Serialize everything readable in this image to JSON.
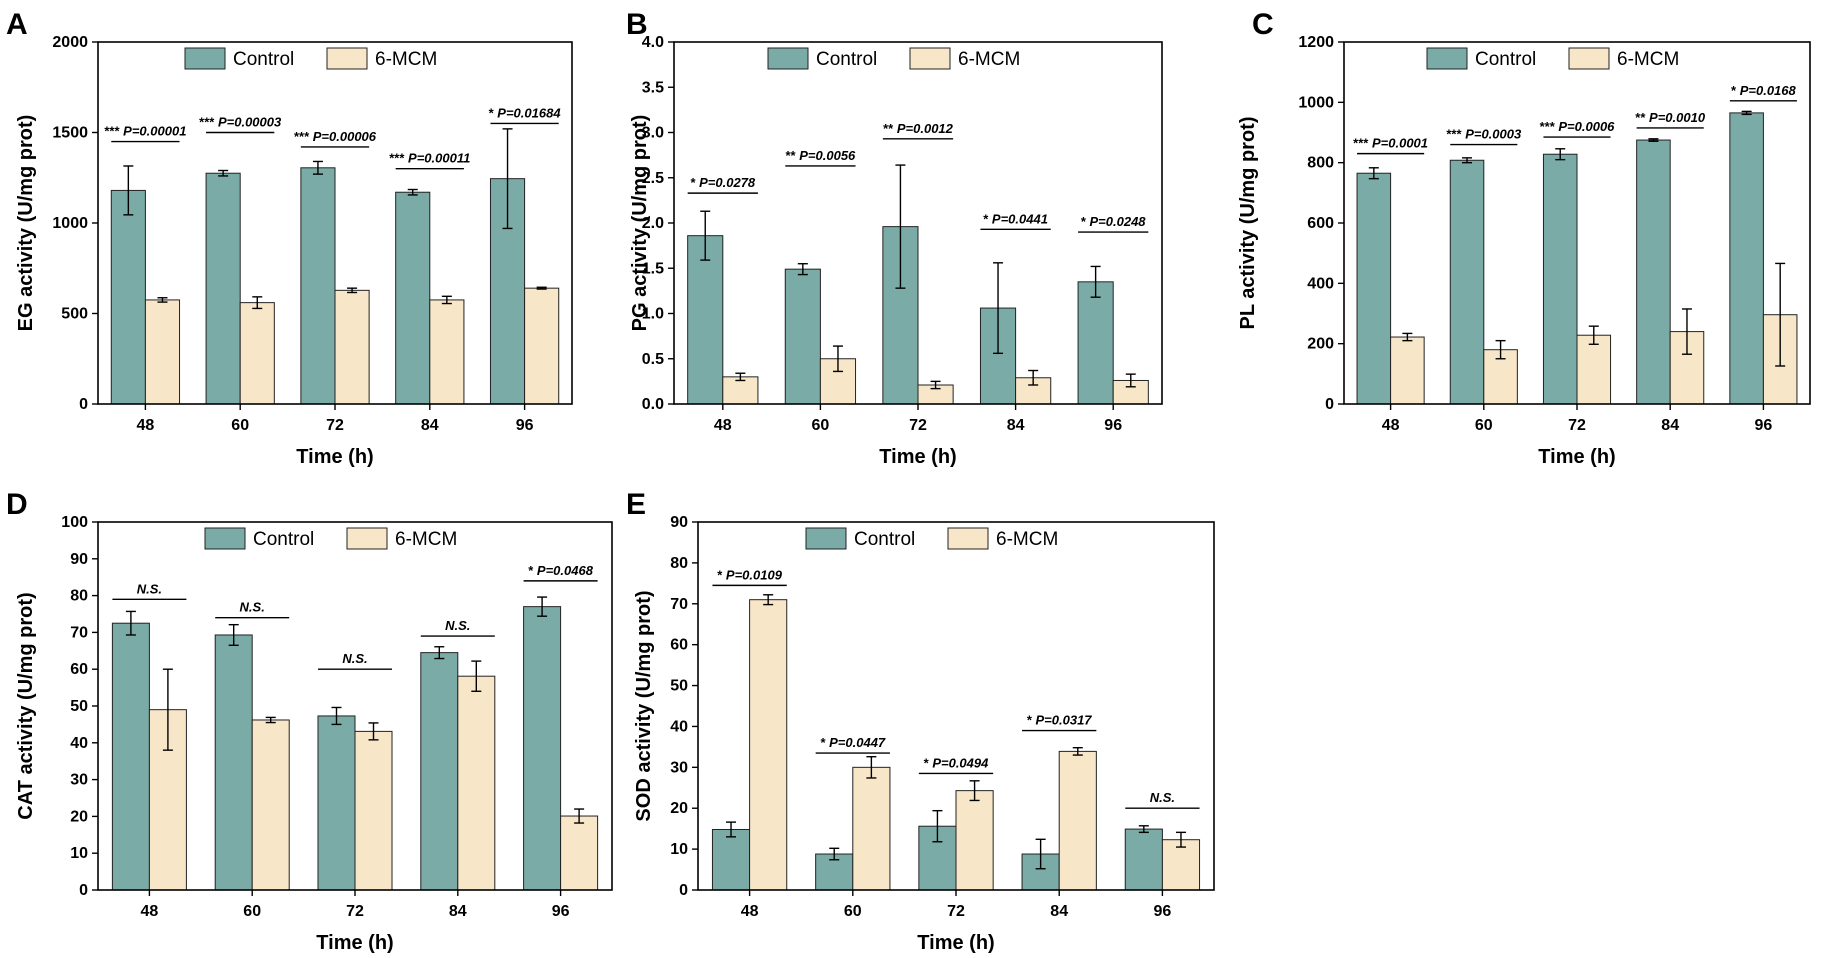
{
  "figure": {
    "colors": {
      "control": "#7aaba6",
      "mcm": "#f8e6c9",
      "stroke": "#222222"
    },
    "legend": {
      "control": "Control",
      "mcm": "6-MCM"
    }
  },
  "chart_data": [
    {
      "panel": "A",
      "type": "bar",
      "title": "",
      "xlabel": "Time (h)",
      "ylabel": "EG activity (U/mg prot)",
      "categories": [
        "48",
        "60",
        "72",
        "84",
        "96"
      ],
      "ylim": [
        0,
        2000
      ],
      "yticks": [
        0,
        500,
        1000,
        1500,
        2000
      ],
      "legend_position": "top",
      "series": [
        {
          "name": "Control",
          "values": [
            1180,
            1275,
            1305,
            1170,
            1245
          ],
          "errors": [
            135,
            15,
            35,
            15,
            275
          ]
        },
        {
          "name": "6-MCM",
          "values": [
            575,
            560,
            628,
            575,
            640
          ],
          "errors": [
            12,
            32,
            12,
            20,
            5
          ]
        }
      ],
      "significance": [
        {
          "stars": "***",
          "label": "P=0.00001",
          "level": 1450
        },
        {
          "stars": "***",
          "label": "P=0.00003",
          "level": 1500
        },
        {
          "stars": "***",
          "label": "P=0.00006",
          "level": 1420
        },
        {
          "stars": "***",
          "label": "P=0.00011",
          "level": 1300
        },
        {
          "stars": "*",
          "label": "P=0.01684",
          "level": 1550
        }
      ]
    },
    {
      "panel": "B",
      "type": "bar",
      "title": "",
      "xlabel": "Time (h)",
      "ylabel": "PG activity (U/mg prot)",
      "categories": [
        "48",
        "60",
        "72",
        "84",
        "96"
      ],
      "ylim": [
        0,
        4.0
      ],
      "yticks": [
        0.0,
        0.5,
        1.0,
        1.5,
        2.0,
        2.5,
        3.0,
        3.5,
        4.0
      ],
      "tick_decimals": 1,
      "legend_position": "top",
      "series": [
        {
          "name": "Control",
          "values": [
            1.86,
            1.49,
            1.96,
            1.06,
            1.35
          ],
          "errors": [
            0.27,
            0.06,
            0.68,
            0.5,
            0.17
          ]
        },
        {
          "name": "6-MCM",
          "values": [
            0.3,
            0.5,
            0.21,
            0.29,
            0.26
          ],
          "errors": [
            0.04,
            0.14,
            0.04,
            0.08,
            0.07
          ]
        }
      ],
      "significance": [
        {
          "stars": "*",
          "label": "P=0.0278",
          "level": 2.33
        },
        {
          "stars": "**",
          "label": "P=0.0056",
          "level": 2.63
        },
        {
          "stars": "**",
          "label": "P=0.0012",
          "level": 2.93
        },
        {
          "stars": "*",
          "label": "P=0.0441",
          "level": 1.93
        },
        {
          "stars": "*",
          "label": "P=0.0248",
          "level": 1.9
        }
      ]
    },
    {
      "panel": "C",
      "type": "bar",
      "title": "",
      "xlabel": "Time (h)",
      "ylabel": "PL activity (U/mg prot)",
      "categories": [
        "48",
        "60",
        "72",
        "84",
        "96"
      ],
      "ylim": [
        0,
        1200
      ],
      "yticks": [
        0,
        200,
        400,
        600,
        800,
        1000,
        1200
      ],
      "legend_position": "top",
      "series": [
        {
          "name": "Control",
          "values": [
            765,
            808,
            828,
            875,
            965
          ],
          "errors": [
            18,
            8,
            18,
            4,
            5
          ]
        },
        {
          "name": "6-MCM",
          "values": [
            222,
            180,
            228,
            240,
            296
          ],
          "errors": [
            12,
            30,
            30,
            75,
            170
          ]
        }
      ],
      "significance": [
        {
          "stars": "***",
          "label": "P=0.0001",
          "level": 830
        },
        {
          "stars": "***",
          "label": "P=0.0003",
          "level": 860
        },
        {
          "stars": "***",
          "label": "P=0.0006",
          "level": 885
        },
        {
          "stars": "**",
          "label": "P=0.0010",
          "level": 915
        },
        {
          "stars": "*",
          "label": "P=0.0168",
          "level": 1005
        }
      ]
    },
    {
      "panel": "D",
      "type": "bar",
      "title": "",
      "xlabel": "Time (h)",
      "ylabel": "CAT activity (U/mg prot)",
      "categories": [
        "48",
        "60",
        "72",
        "84",
        "96"
      ],
      "ylim": [
        0,
        100
      ],
      "yticks": [
        0,
        10,
        20,
        30,
        40,
        50,
        60,
        70,
        80,
        90,
        100
      ],
      "legend_position": "top",
      "series": [
        {
          "name": "Control",
          "values": [
            72.5,
            69.3,
            47.3,
            64.5,
            77
          ],
          "errors": [
            3.2,
            2.8,
            2.3,
            1.6,
            2.6
          ]
        },
        {
          "name": "6-MCM",
          "values": [
            49,
            46.2,
            43.1,
            58.1,
            20.1
          ],
          "errors": [
            11,
            0.7,
            2.3,
            4.1,
            1.9
          ]
        }
      ],
      "significance": [
        {
          "stars": "",
          "label": "N.S.",
          "level": 79
        },
        {
          "stars": "",
          "label": "N.S.",
          "level": 74
        },
        {
          "stars": "",
          "label": "N.S.",
          "level": 60
        },
        {
          "stars": "",
          "label": "N.S.",
          "level": 69
        },
        {
          "stars": "*",
          "label": "P=0.0468",
          "level": 84
        }
      ]
    },
    {
      "panel": "E",
      "type": "bar",
      "title": "",
      "xlabel": "Time (h)",
      "ylabel": "SOD activity (U/mg prot)",
      "categories": [
        "48",
        "60",
        "72",
        "84",
        "96"
      ],
      "ylim": [
        0,
        90
      ],
      "yticks": [
        0,
        10,
        20,
        30,
        40,
        50,
        60,
        70,
        80,
        90
      ],
      "legend_position": "top",
      "series": [
        {
          "name": "Control",
          "values": [
            14.8,
            8.8,
            15.6,
            8.8,
            14.9
          ],
          "errors": [
            1.8,
            1.4,
            3.8,
            3.6,
            0.8
          ]
        },
        {
          "name": "6-MCM",
          "values": [
            71,
            30,
            24.3,
            33.9,
            12.3
          ],
          "errors": [
            1.2,
            2.6,
            2.4,
            0.9,
            1.8
          ]
        }
      ],
      "significance": [
        {
          "stars": "*",
          "label": "P=0.0109",
          "level": 74.5
        },
        {
          "stars": "*",
          "label": "P=0.0447",
          "level": 33.5
        },
        {
          "stars": "*",
          "label": "P=0.0494",
          "level": 28.5
        },
        {
          "stars": "*",
          "label": "P=0.0317",
          "level": 39
        },
        {
          "stars": "",
          "label": "N.S.",
          "level": 20
        }
      ]
    }
  ]
}
